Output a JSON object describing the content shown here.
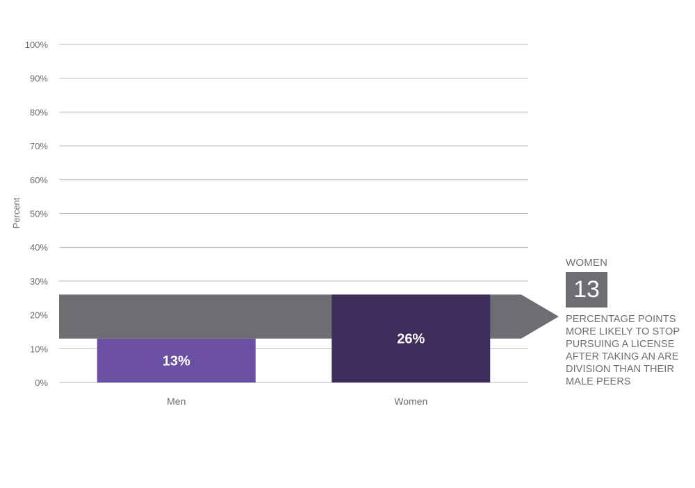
{
  "chart_data": {
    "type": "bar",
    "categories": [
      "Men",
      "Women"
    ],
    "values": [
      13,
      26
    ],
    "data_labels": [
      "13%",
      "26%"
    ],
    "ylabel": "Percent",
    "ylim": [
      0,
      100
    ],
    "yticks": [
      0,
      10,
      20,
      30,
      40,
      50,
      60,
      70,
      80,
      90,
      100
    ],
    "ytick_labels": [
      "0%",
      "10%",
      "20%",
      "30%",
      "40%",
      "50%",
      "60%",
      "70%",
      "80%",
      "90%",
      "100%"
    ],
    "grid": true,
    "bar_colors": [
      "#6a4fa3",
      "#3f2d5c"
    ],
    "gap_arrow": {
      "from": 13,
      "to": 26,
      "color": "#6d6e71"
    }
  },
  "callout": {
    "heading": "WOMEN",
    "number": "13",
    "lines": [
      "PERCENTAGE POINTS",
      "MORE LIKELY TO STOP",
      "PURSUING A LICENSE",
      "AFTER TAKING AN ARE",
      "DIVISION THAN THEIR",
      "MALE PEERS"
    ]
  }
}
